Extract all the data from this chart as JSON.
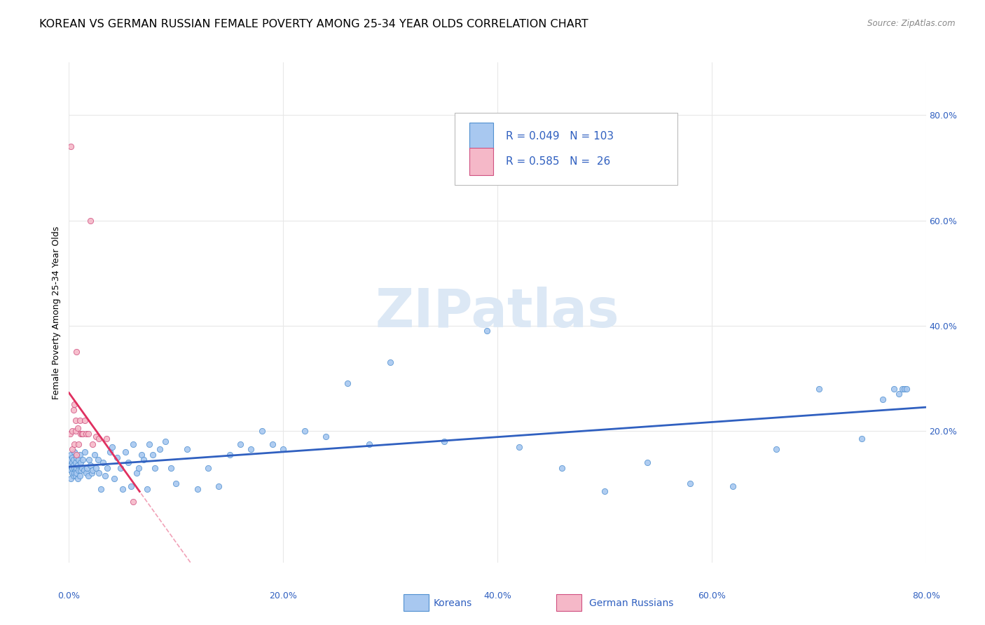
{
  "title": "KOREAN VS GERMAN RUSSIAN FEMALE POVERTY AMONG 25-34 YEAR OLDS CORRELATION CHART",
  "source": "Source: ZipAtlas.com",
  "ylabel": "Female Poverty Among 25-34 Year Olds",
  "xlim": [
    0.0,
    0.8
  ],
  "ylim": [
    -0.05,
    0.9
  ],
  "xtick_vals": [
    0.0,
    0.2,
    0.4,
    0.6,
    0.8
  ],
  "xtick_labels": [
    "0.0%",
    "20.0%",
    "40.0%",
    "60.0%",
    "80.0%"
  ],
  "ytick_vals": [
    0.2,
    0.4,
    0.6,
    0.8
  ],
  "ytick_labels": [
    "20.0%",
    "40.0%",
    "60.0%",
    "80.0%"
  ],
  "korean_color": "#a8c8f0",
  "korean_edge_color": "#5090d0",
  "german_russian_color": "#f5b8c8",
  "german_russian_edge_color": "#d05080",
  "korean_trendline_color": "#3060c0",
  "german_russian_trendline_color": "#e03060",
  "legend_text_color": "#3060c0",
  "watermark_color": "#dce8f5",
  "background_color": "#ffffff",
  "grid_color": "#e8e8e8",
  "title_fontsize": 11.5,
  "axis_fontsize": 9,
  "tick_fontsize": 9,
  "legend_R_korean": "0.049",
  "legend_N_korean": "103",
  "legend_R_german": "0.585",
  "legend_N_german": " 26",
  "korean_x": [
    0.001,
    0.001,
    0.002,
    0.002,
    0.002,
    0.002,
    0.003,
    0.003,
    0.003,
    0.003,
    0.004,
    0.004,
    0.004,
    0.005,
    0.005,
    0.005,
    0.006,
    0.006,
    0.006,
    0.007,
    0.007,
    0.007,
    0.008,
    0.008,
    0.009,
    0.009,
    0.01,
    0.01,
    0.011,
    0.011,
    0.012,
    0.013,
    0.014,
    0.015,
    0.016,
    0.017,
    0.018,
    0.019,
    0.02,
    0.021,
    0.022,
    0.024,
    0.025,
    0.027,
    0.028,
    0.03,
    0.032,
    0.034,
    0.036,
    0.038,
    0.04,
    0.042,
    0.045,
    0.048,
    0.05,
    0.053,
    0.055,
    0.058,
    0.06,
    0.063,
    0.065,
    0.068,
    0.07,
    0.073,
    0.075,
    0.078,
    0.08,
    0.085,
    0.09,
    0.095,
    0.1,
    0.11,
    0.12,
    0.13,
    0.14,
    0.15,
    0.16,
    0.17,
    0.18,
    0.19,
    0.2,
    0.22,
    0.24,
    0.26,
    0.28,
    0.3,
    0.35,
    0.39,
    0.42,
    0.46,
    0.5,
    0.54,
    0.58,
    0.62,
    0.66,
    0.7,
    0.74,
    0.76,
    0.77,
    0.775,
    0.778,
    0.78,
    0.782
  ],
  "korean_y": [
    0.145,
    0.13,
    0.155,
    0.125,
    0.135,
    0.11,
    0.14,
    0.12,
    0.15,
    0.13,
    0.135,
    0.115,
    0.145,
    0.16,
    0.12,
    0.13,
    0.14,
    0.115,
    0.125,
    0.13,
    0.15,
    0.12,
    0.135,
    0.11,
    0.145,
    0.125,
    0.155,
    0.115,
    0.14,
    0.125,
    0.13,
    0.145,
    0.125,
    0.16,
    0.12,
    0.13,
    0.115,
    0.145,
    0.135,
    0.12,
    0.125,
    0.155,
    0.13,
    0.145,
    0.12,
    0.09,
    0.14,
    0.115,
    0.13,
    0.16,
    0.17,
    0.11,
    0.15,
    0.13,
    0.09,
    0.16,
    0.14,
    0.095,
    0.175,
    0.12,
    0.13,
    0.155,
    0.145,
    0.09,
    0.175,
    0.155,
    0.13,
    0.165,
    0.18,
    0.13,
    0.1,
    0.165,
    0.09,
    0.13,
    0.095,
    0.155,
    0.175,
    0.165,
    0.2,
    0.175,
    0.165,
    0.2,
    0.19,
    0.29,
    0.175,
    0.33,
    0.18,
    0.39,
    0.17,
    0.13,
    0.085,
    0.14,
    0.1,
    0.095,
    0.165,
    0.28,
    0.185,
    0.26,
    0.28,
    0.27,
    0.28,
    0.28,
    0.28
  ],
  "german_russian_x": [
    0.001,
    0.002,
    0.003,
    0.003,
    0.004,
    0.005,
    0.005,
    0.006,
    0.006,
    0.007,
    0.007,
    0.008,
    0.009,
    0.01,
    0.011,
    0.012,
    0.013,
    0.015,
    0.016,
    0.018,
    0.02,
    0.022,
    0.025,
    0.028,
    0.035,
    0.06
  ],
  "german_russian_y": [
    0.195,
    0.74,
    0.2,
    0.165,
    0.24,
    0.25,
    0.175,
    0.22,
    0.2,
    0.35,
    0.155,
    0.205,
    0.175,
    0.22,
    0.195,
    0.195,
    0.195,
    0.22,
    0.195,
    0.195,
    0.6,
    0.175,
    0.19,
    0.185,
    0.185,
    0.065
  ]
}
